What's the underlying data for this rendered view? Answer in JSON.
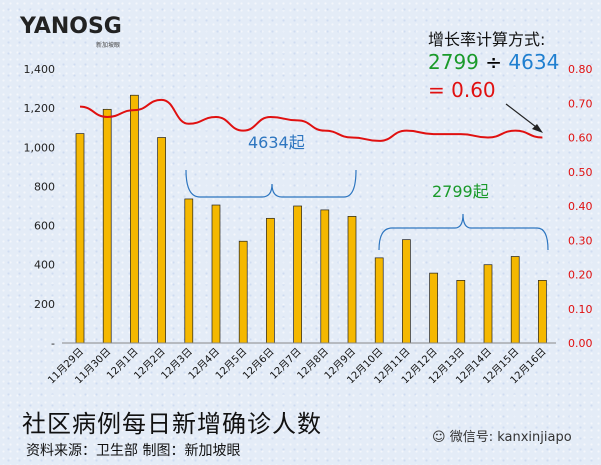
{
  "logo": {
    "brand": "YANOSG",
    "sub": "新加坡眼"
  },
  "formula": {
    "label": "增长率计算方式:",
    "numerator": "2799",
    "divide_sign": "÷",
    "denominator": "4634",
    "result": "= 0.60",
    "numerator_color": "#1a9a2a",
    "denominator_color": "#1f7fd0",
    "result_color": "#e01010"
  },
  "annotations": {
    "brace1_label": "4634起",
    "brace2_label": "2799起"
  },
  "title": "社区病例每日新增确诊人数",
  "source": "资料来源：卫生部      制图：新加坡眼",
  "wechat": "微信号: kanxinjiapo",
  "chart_data": {
    "type": "bar",
    "categories": [
      "11月29日",
      "11月30日",
      "12月1日",
      "12月2日",
      "12月3日",
      "12月4日",
      "12月5日",
      "12月6日",
      "12月7日",
      "12月8日",
      "12月9日",
      "12月10日",
      "12月11日",
      "12月12日",
      "12月13日",
      "12月14日",
      "12月15日",
      "12月16日"
    ],
    "series": [
      {
        "values": [
          1070,
          1194,
          1266,
          1050,
          736,
          705,
          520,
          637,
          700,
          680,
          647,
          435,
          528,
          357,
          320,
          400,
          442,
          320
        ],
        "color": "#f5b800",
        "axis": "left"
      },
      {
        "type": "line",
        "values": [
          0.69,
          0.66,
          0.68,
          0.71,
          0.64,
          0.66,
          0.62,
          0.66,
          0.65,
          0.62,
          0.6,
          0.59,
          0.62,
          0.61,
          0.61,
          0.6,
          0.62,
          0.6
        ],
        "color": "#e01010",
        "axis": "right"
      }
    ],
    "y_left": {
      "lim": [
        0,
        1400
      ],
      "ticks": [
        "-",
        "200",
        "400",
        "600",
        "800",
        "1,000",
        "1,200",
        "1,400"
      ]
    },
    "y_right": {
      "lim": [
        0,
        0.8
      ],
      "ticks": [
        "0.00",
        "0.10",
        "0.20",
        "0.30",
        "0.40",
        "0.50",
        "0.60",
        "0.70",
        "0.80"
      ]
    },
    "grid": false
  }
}
